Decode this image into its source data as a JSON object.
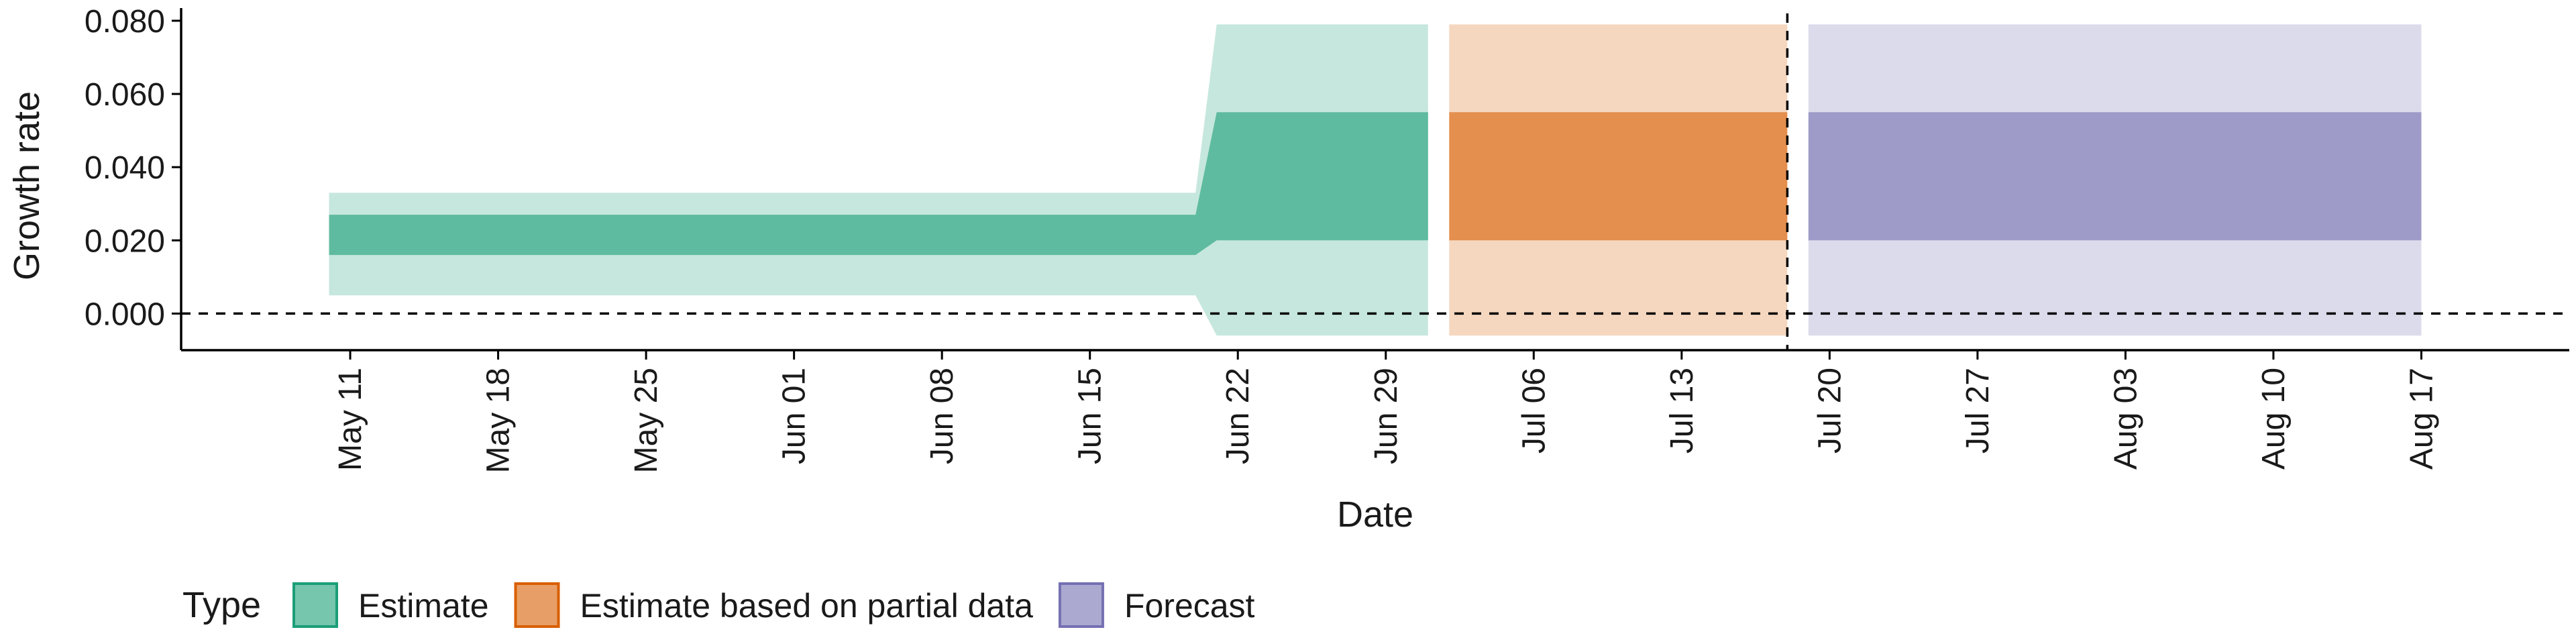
{
  "chart_data": {
    "type": "area",
    "xlabel": "Date",
    "ylabel": "Growth rate",
    "ylim": [
      -0.01,
      0.082
    ],
    "yticks": [
      0.0,
      0.02,
      0.04,
      0.06,
      0.08
    ],
    "ytick_labels": [
      "0.000",
      "0.020",
      "0.040",
      "0.060",
      "0.080"
    ],
    "xlim": [
      "2020-05-03",
      "2020-08-24"
    ],
    "xticks": [
      "2020-05-11",
      "2020-05-18",
      "2020-05-25",
      "2020-06-01",
      "2020-06-08",
      "2020-06-15",
      "2020-06-22",
      "2020-06-29",
      "2020-07-06",
      "2020-07-13",
      "2020-07-20",
      "2020-07-27",
      "2020-08-03",
      "2020-08-10",
      "2020-08-17"
    ],
    "xtick_labels": [
      "May 11",
      "May 18",
      "May 25",
      "Jun 01",
      "Jun 08",
      "Jun 15",
      "Jun 22",
      "Jun 29",
      "Jul 06",
      "Jul 13",
      "Jul 20",
      "Jul 27",
      "Aug 03",
      "Aug 10",
      "Aug 17"
    ],
    "grid": false,
    "legend": {
      "title": "Type",
      "position": "bottom-left",
      "entries": [
        "Estimate",
        "Estimate based on partial data",
        "Forecast"
      ]
    },
    "reference_lines": [
      {
        "orientation": "horizontal",
        "value": 0.0,
        "style": "dashed"
      },
      {
        "orientation": "vertical",
        "value": "2020-07-18",
        "style": "dashed"
      }
    ],
    "series": [
      {
        "name": "Estimate",
        "color": "#1b9e77",
        "x": [
          "2020-05-10",
          "2020-06-20",
          "2020-06-21",
          "2020-07-01"
        ],
        "outer_lower": [
          0.005,
          0.005,
          -0.006,
          -0.006
        ],
        "inner_lower": [
          0.016,
          0.016,
          0.02,
          0.02
        ],
        "inner_upper": [
          0.027,
          0.027,
          0.055,
          0.055
        ],
        "outer_upper": [
          0.033,
          0.033,
          0.079,
          0.079
        ]
      },
      {
        "name": "Estimate based on partial data",
        "color": "#d95f02",
        "x": [
          "2020-07-02",
          "2020-07-18"
        ],
        "outer_lower": [
          -0.006,
          -0.006
        ],
        "inner_lower": [
          0.02,
          0.02
        ],
        "inner_upper": [
          0.055,
          0.055
        ],
        "outer_upper": [
          0.079,
          0.079
        ]
      },
      {
        "name": "Forecast",
        "color": "#7570b3",
        "x": [
          "2020-07-19",
          "2020-08-17"
        ],
        "outer_lower": [
          -0.006,
          -0.006
        ],
        "inner_lower": [
          0.02,
          0.02
        ],
        "inner_upper": [
          0.055,
          0.055
        ],
        "outer_upper": [
          0.079,
          0.079
        ]
      }
    ]
  }
}
